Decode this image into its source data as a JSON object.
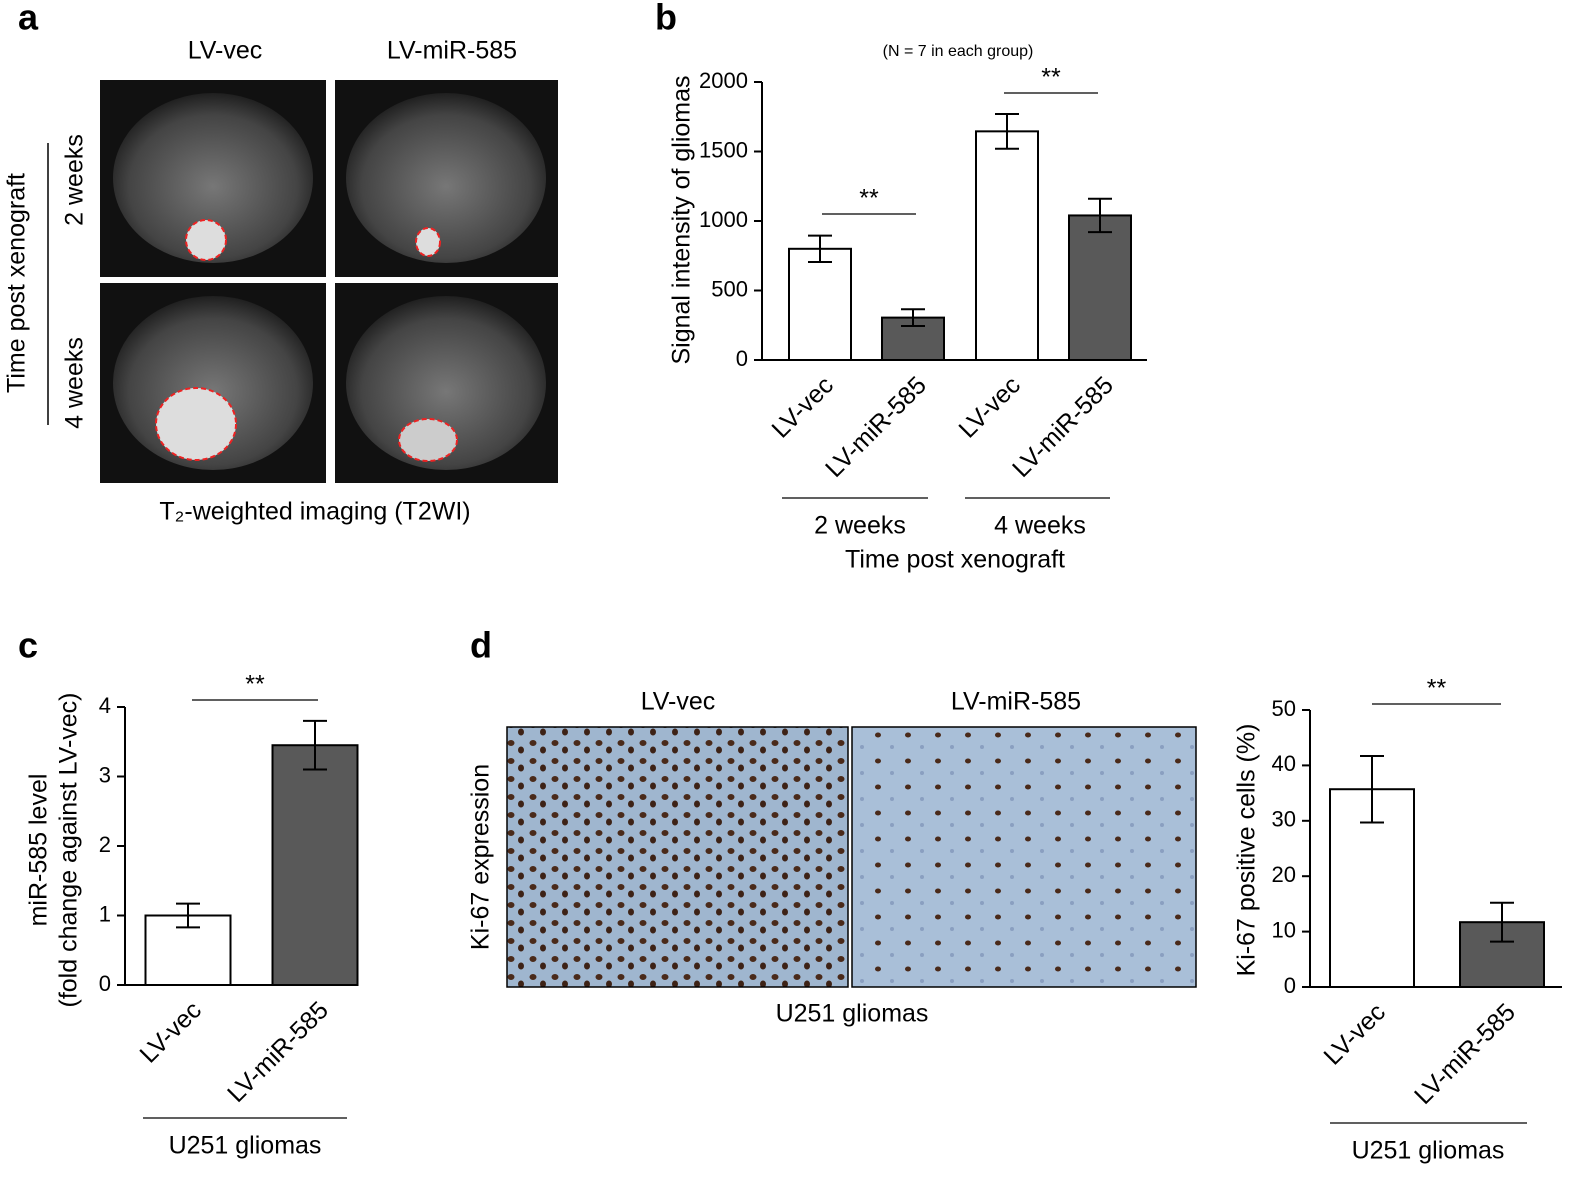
{
  "panel_a": {
    "panel": "a",
    "columns": [
      "LV-vec",
      "LV-miR-585"
    ],
    "rows": [
      "2 weeks",
      "4 weeks"
    ],
    "row_axis_label": "Time post xenograft",
    "caption": "T₂-weighted imaging (T2WI)"
  },
  "panel_d_images": {
    "columns": [
      "LV-vec",
      "LV-miR-585"
    ],
    "ylabel": "Ki-67 expression",
    "caption": "U251 gliomas"
  },
  "chart_data": [
    {
      "type": "bar",
      "panel": "b",
      "subtitle": "(N  = 7 in each group)",
      "ylabel": [
        "Signal intensity of gliomas"
      ],
      "categories": [
        "LV-vec",
        "LV-miR-585",
        "LV-vec",
        "LV-miR-585"
      ],
      "values": [
        800,
        305,
        1645,
        1040
      ],
      "errors": [
        95,
        60,
        125,
        120
      ],
      "colors": [
        "#ffffff",
        "#595959",
        "#ffffff",
        "#595959"
      ],
      "ylim": [
        0,
        2000
      ],
      "yticks": [
        0,
        500,
        1000,
        1500,
        2000
      ],
      "annotations": [
        "**",
        "**"
      ],
      "groups": [
        "2 weeks",
        "4 weeks"
      ],
      "xlabel": "Time post xenograft"
    },
    {
      "type": "bar",
      "panel": "c",
      "ylabel": [
        "miR-585 level",
        "(fold change against LV-vec)"
      ],
      "categories": [
        "LV-vec",
        "LV-miR-585"
      ],
      "values": [
        1.0,
        3.45
      ],
      "errors": [
        0.17,
        0.35
      ],
      "colors": [
        "#ffffff",
        "#595959"
      ],
      "ylim": [
        0,
        4
      ],
      "yticks": [
        0,
        1,
        2,
        3,
        4
      ],
      "annotations": [
        "**"
      ],
      "groups": [
        "U251 gliomas"
      ]
    },
    {
      "type": "bar",
      "panel": "d",
      "ylabel": [
        "Ki-67 positive cells (%)"
      ],
      "categories": [
        "LV-vec",
        "LV-miR-585"
      ],
      "values": [
        35.7,
        11.7
      ],
      "errors": [
        6,
        3.5
      ],
      "colors": [
        "#ffffff",
        "#595959"
      ],
      "ylim": [
        0,
        50
      ],
      "yticks": [
        0,
        10,
        20,
        30,
        40,
        50
      ],
      "annotations": [
        "**"
      ],
      "groups": [
        "U251 gliomas"
      ]
    }
  ]
}
